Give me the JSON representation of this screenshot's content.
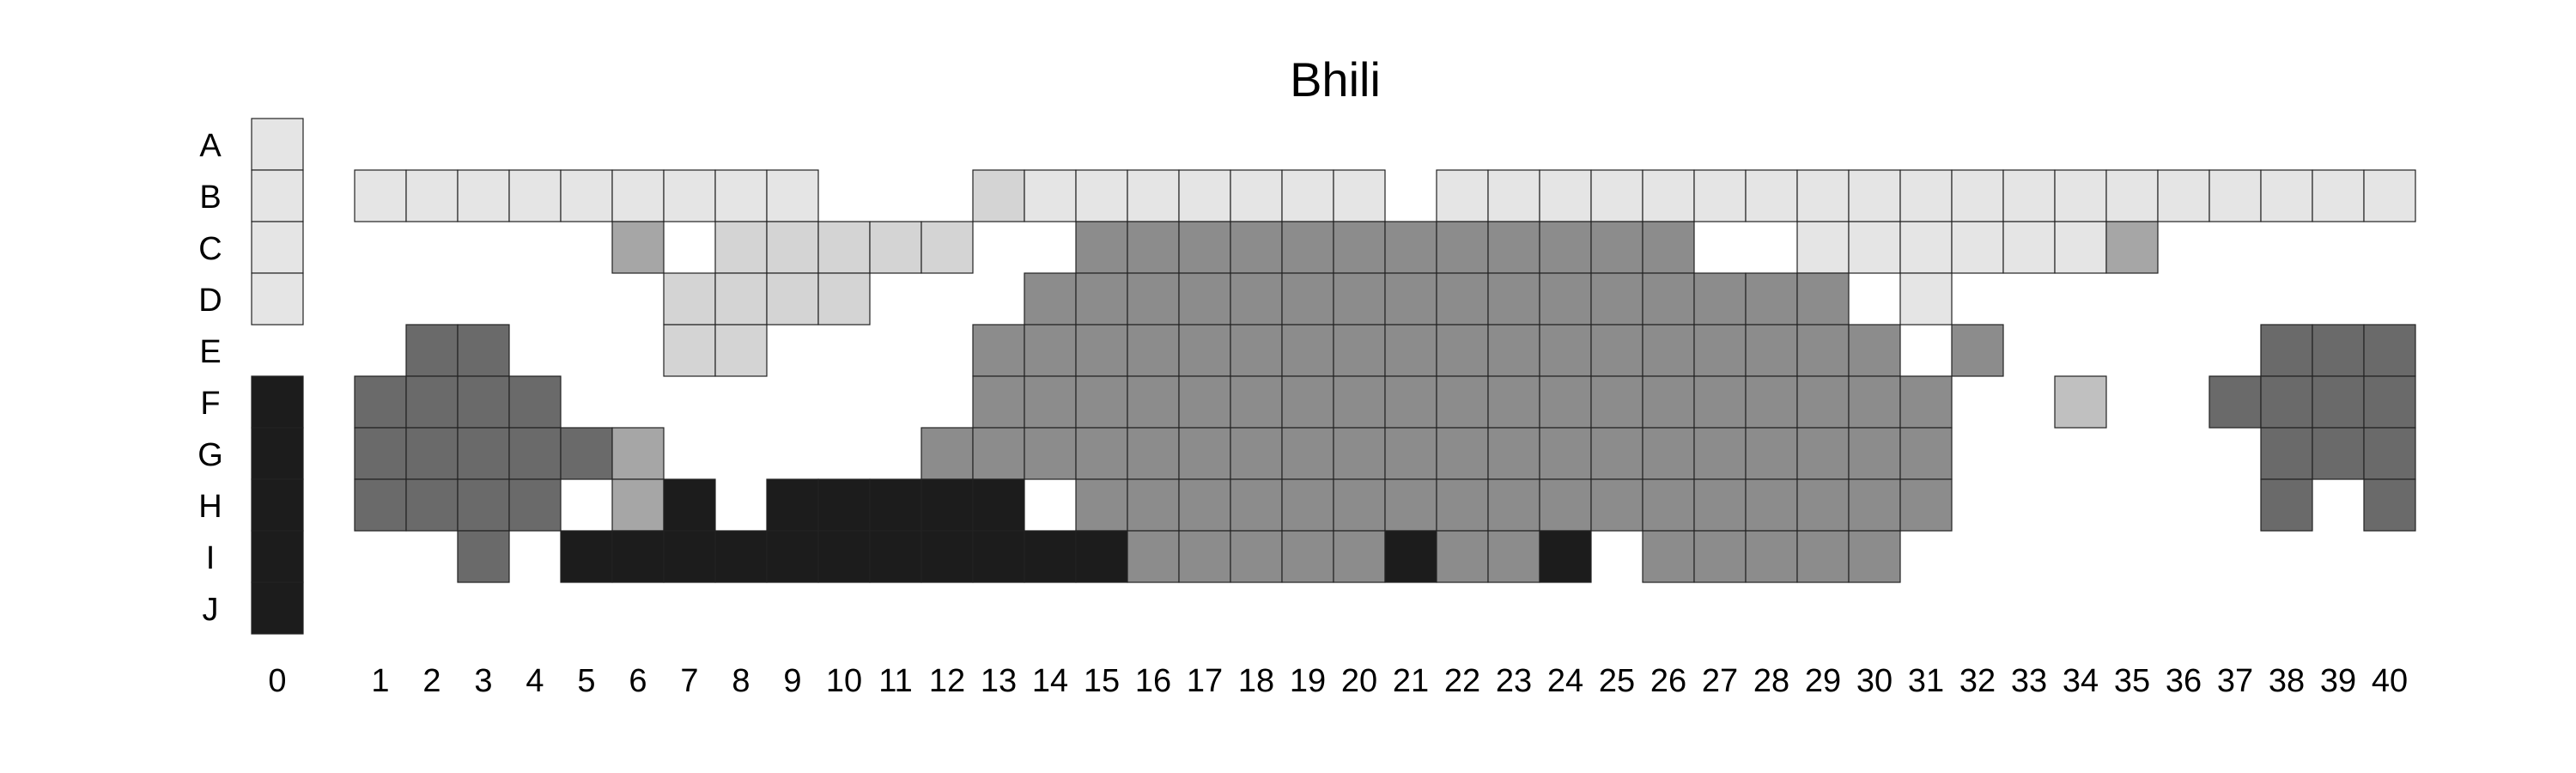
{
  "chart_data": {
    "type": "heatmap",
    "title": "Bhili",
    "rows": [
      "A",
      "B",
      "C",
      "D",
      "E",
      "F",
      "G",
      "H",
      "I",
      "J"
    ],
    "columns": [
      "0",
      "1",
      "2",
      "3",
      "4",
      "5",
      "6",
      "7",
      "8",
      "9",
      "10",
      "11",
      "12",
      "13",
      "14",
      "15",
      "16",
      "17",
      "18",
      "19",
      "20",
      "21",
      "22",
      "23",
      "24",
      "25",
      "26",
      "27",
      "28",
      "29",
      "30",
      "31",
      "32",
      "33",
      "34",
      "35",
      "36",
      "37",
      "38",
      "39",
      "40"
    ],
    "colors": {
      "1": "#e5e5e5",
      "2": "#d4d4d4",
      "3": "#c0c0c0",
      "4": "#a6a6a6",
      "5": "#8c8c8c",
      "6": "#6a6a6a",
      "7": "#1c1c1c"
    },
    "border_color": "#222222",
    "grid": false,
    "cells": [
      [
        [
          0,
          1
        ]
      ],
      [
        [
          0,
          1
        ],
        [
          1,
          1
        ],
        [
          2,
          1
        ],
        [
          3,
          1
        ],
        [
          4,
          1
        ],
        [
          5,
          1
        ],
        [
          6,
          1
        ],
        [
          7,
          1
        ],
        [
          8,
          1
        ],
        [
          9,
          1
        ],
        [
          13,
          2
        ],
        [
          14,
          1
        ],
        [
          15,
          1
        ],
        [
          16,
          1
        ],
        [
          17,
          1
        ],
        [
          18,
          1
        ],
        [
          19,
          1
        ],
        [
          20,
          1
        ],
        [
          22,
          1
        ],
        [
          23,
          1
        ],
        [
          24,
          1
        ],
        [
          25,
          1
        ],
        [
          26,
          1
        ],
        [
          27,
          1
        ],
        [
          28,
          1
        ],
        [
          29,
          1
        ],
        [
          30,
          1
        ],
        [
          31,
          1
        ],
        [
          32,
          1
        ],
        [
          33,
          1
        ],
        [
          34,
          1
        ],
        [
          35,
          1
        ],
        [
          36,
          1
        ],
        [
          37,
          1
        ],
        [
          38,
          1
        ],
        [
          39,
          1
        ],
        [
          40,
          1
        ]
      ],
      [
        [
          0,
          1
        ],
        [
          6,
          4
        ],
        [
          8,
          2
        ],
        [
          9,
          2
        ],
        [
          10,
          2
        ],
        [
          11,
          2
        ],
        [
          12,
          2
        ],
        [
          15,
          5
        ],
        [
          16,
          5
        ],
        [
          17,
          5
        ],
        [
          18,
          5
        ],
        [
          19,
          5
        ],
        [
          20,
          5
        ],
        [
          21,
          5
        ],
        [
          22,
          5
        ],
        [
          23,
          5
        ],
        [
          24,
          5
        ],
        [
          25,
          5
        ],
        [
          26,
          5
        ],
        [
          29,
          1
        ],
        [
          30,
          1
        ],
        [
          31,
          1
        ],
        [
          32,
          1
        ],
        [
          33,
          1
        ],
        [
          34,
          1
        ],
        [
          35,
          4
        ]
      ],
      [
        [
          0,
          1
        ],
        [
          7,
          2
        ],
        [
          8,
          2
        ],
        [
          9,
          2
        ],
        [
          10,
          2
        ],
        [
          14,
          5
        ],
        [
          15,
          5
        ],
        [
          16,
          5
        ],
        [
          17,
          5
        ],
        [
          18,
          5
        ],
        [
          19,
          5
        ],
        [
          20,
          5
        ],
        [
          21,
          5
        ],
        [
          22,
          5
        ],
        [
          23,
          5
        ],
        [
          24,
          5
        ],
        [
          25,
          5
        ],
        [
          26,
          5
        ],
        [
          27,
          5
        ],
        [
          28,
          5
        ],
        [
          29,
          5
        ],
        [
          31,
          1
        ]
      ],
      [
        [
          2,
          6
        ],
        [
          3,
          6
        ],
        [
          7,
          2
        ],
        [
          8,
          2
        ],
        [
          13,
          5
        ],
        [
          14,
          5
        ],
        [
          15,
          5
        ],
        [
          16,
          5
        ],
        [
          17,
          5
        ],
        [
          18,
          5
        ],
        [
          19,
          5
        ],
        [
          20,
          5
        ],
        [
          21,
          5
        ],
        [
          22,
          5
        ],
        [
          23,
          5
        ],
        [
          24,
          5
        ],
        [
          25,
          5
        ],
        [
          26,
          5
        ],
        [
          27,
          5
        ],
        [
          28,
          5
        ],
        [
          29,
          5
        ],
        [
          30,
          5
        ],
        [
          32,
          5
        ],
        [
          38,
          6
        ],
        [
          39,
          6
        ],
        [
          40,
          6
        ]
      ],
      [
        [
          0,
          7
        ],
        [
          1,
          6
        ],
        [
          2,
          6
        ],
        [
          3,
          6
        ],
        [
          4,
          6
        ],
        [
          13,
          5
        ],
        [
          14,
          5
        ],
        [
          15,
          5
        ],
        [
          16,
          5
        ],
        [
          17,
          5
        ],
        [
          18,
          5
        ],
        [
          19,
          5
        ],
        [
          20,
          5
        ],
        [
          21,
          5
        ],
        [
          22,
          5
        ],
        [
          23,
          5
        ],
        [
          24,
          5
        ],
        [
          25,
          5
        ],
        [
          26,
          5
        ],
        [
          27,
          5
        ],
        [
          28,
          5
        ],
        [
          29,
          5
        ],
        [
          30,
          5
        ],
        [
          31,
          5
        ],
        [
          34,
          3
        ],
        [
          37,
          6
        ],
        [
          38,
          6
        ],
        [
          39,
          6
        ],
        [
          40,
          6
        ]
      ],
      [
        [
          0,
          7
        ],
        [
          1,
          6
        ],
        [
          2,
          6
        ],
        [
          3,
          6
        ],
        [
          4,
          6
        ],
        [
          5,
          6
        ],
        [
          6,
          4
        ],
        [
          12,
          5
        ],
        [
          13,
          5
        ],
        [
          14,
          5
        ],
        [
          15,
          5
        ],
        [
          16,
          5
        ],
        [
          17,
          5
        ],
        [
          18,
          5
        ],
        [
          19,
          5
        ],
        [
          20,
          5
        ],
        [
          21,
          5
        ],
        [
          22,
          5
        ],
        [
          23,
          5
        ],
        [
          24,
          5
        ],
        [
          25,
          5
        ],
        [
          26,
          5
        ],
        [
          27,
          5
        ],
        [
          28,
          5
        ],
        [
          29,
          5
        ],
        [
          30,
          5
        ],
        [
          31,
          5
        ],
        [
          38,
          6
        ],
        [
          39,
          6
        ],
        [
          40,
          6
        ]
      ],
      [
        [
          0,
          7
        ],
        [
          1,
          6
        ],
        [
          2,
          6
        ],
        [
          3,
          6
        ],
        [
          4,
          6
        ],
        [
          6,
          4
        ],
        [
          7,
          7
        ],
        [
          9,
          7
        ],
        [
          10,
          7
        ],
        [
          11,
          7
        ],
        [
          12,
          7
        ],
        [
          13,
          7
        ],
        [
          15,
          5
        ],
        [
          16,
          5
        ],
        [
          17,
          5
        ],
        [
          18,
          5
        ],
        [
          19,
          5
        ],
        [
          20,
          5
        ],
        [
          21,
          5
        ],
        [
          22,
          5
        ],
        [
          23,
          5
        ],
        [
          24,
          5
        ],
        [
          25,
          5
        ],
        [
          26,
          5
        ],
        [
          27,
          5
        ],
        [
          28,
          5
        ],
        [
          29,
          5
        ],
        [
          30,
          5
        ],
        [
          31,
          5
        ],
        [
          38,
          6
        ],
        [
          40,
          6
        ]
      ],
      [
        [
          0,
          7
        ],
        [
          3,
          6
        ],
        [
          5,
          7
        ],
        [
          6,
          7
        ],
        [
          7,
          7
        ],
        [
          8,
          7
        ],
        [
          9,
          7
        ],
        [
          10,
          7
        ],
        [
          11,
          7
        ],
        [
          12,
          7
        ],
        [
          13,
          7
        ],
        [
          14,
          7
        ],
        [
          15,
          7
        ],
        [
          16,
          5
        ],
        [
          17,
          5
        ],
        [
          18,
          5
        ],
        [
          19,
          5
        ],
        [
          20,
          5
        ],
        [
          21,
          7
        ],
        [
          22,
          5
        ],
        [
          23,
          5
        ],
        [
          24,
          7
        ],
        [
          26,
          5
        ],
        [
          27,
          5
        ],
        [
          28,
          5
        ],
        [
          29,
          5
        ],
        [
          30,
          5
        ]
      ],
      [
        [
          0,
          7
        ]
      ]
    ]
  }
}
